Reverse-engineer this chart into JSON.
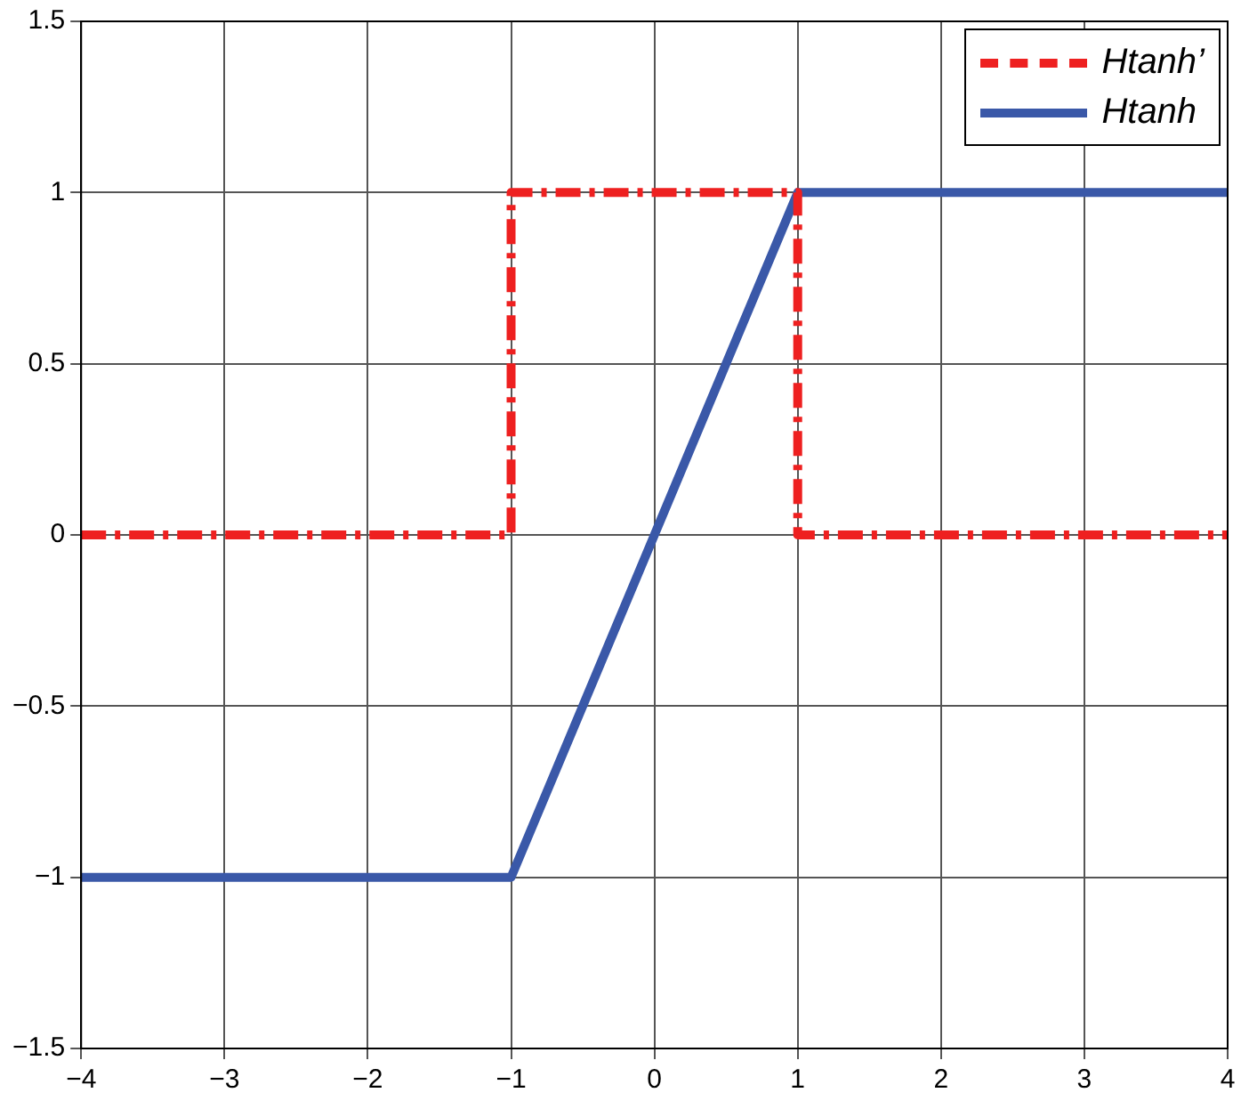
{
  "chart_data": {
    "type": "line",
    "series": [
      {
        "name": "Htanh’",
        "color": "#ee2020",
        "x": [
          -4,
          -1,
          -1,
          1,
          1,
          4
        ],
        "values": [
          0,
          0,
          1,
          1,
          0,
          0
        ],
        "line_style": "dashed"
      },
      {
        "name": "Htanh",
        "color": "#3a58a8",
        "x": [
          -4,
          -1,
          1,
          4
        ],
        "values": [
          -1,
          -1,
          1,
          1
        ],
        "line_style": "solid"
      }
    ],
    "xlim": [
      -4,
      4
    ],
    "xticks": [
      -4,
      -3,
      -2,
      -1,
      0,
      1,
      2,
      3,
      4
    ],
    "ylim": [
      -1.5,
      1.5
    ],
    "yticks": [
      {
        "value": -1.5,
        "label": "−1.5"
      },
      {
        "value": -1,
        "label": "−1"
      },
      {
        "value": -0.5,
        "label": "−0.5"
      },
      0,
      0.5,
      1,
      1.5
    ],
    "grid": true,
    "legend": "top right",
    "marker": "none"
  }
}
